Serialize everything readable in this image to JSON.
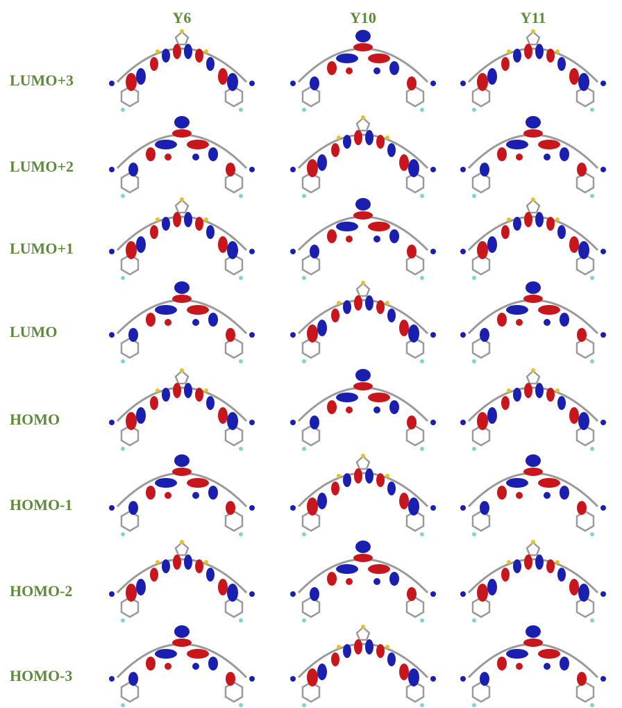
{
  "columns": [
    "Y6",
    "Y10",
    "Y11"
  ],
  "rows": [
    "LUMO+3",
    "LUMO+2",
    "LUMO+1",
    "LUMO",
    "HOMO",
    "HOMO-1",
    "HOMO-2",
    "HOMO-3"
  ]
}
